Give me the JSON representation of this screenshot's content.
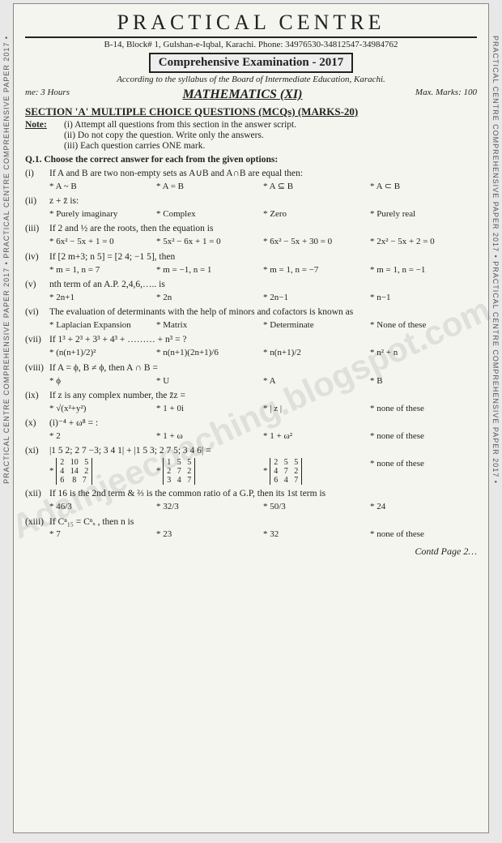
{
  "side_text": "PRACTICAL CENTRE COMPREHENSIVE PAPER 2017 • PRACTICAL CENTRE COMPREHENSIVE PAPER 2017 •",
  "header": {
    "title": "PRACTICAL CENTRE",
    "address": "B-14, Block# 1, Gulshan-e-Iqbal, Karachi. Phone: 34976530-34812547-34984762",
    "exam": "Comprehensive Examination - 2017",
    "syllabus": "According to the syllabus of the Board of Intermediate Education, Karachi.",
    "time": "me: 3 Hours",
    "subject": "MATHEMATICS (XI)",
    "marks": "Max. Marks: 100"
  },
  "section": "SECTION 'A' MULTIPLE CHOICE QUESTIONS (MCQs) (MARKS-20)",
  "note_label": "Note:",
  "notes": [
    "(i) Attempt all questions from this section in the answer script.",
    "(ii) Do not copy the question. Write only the answers.",
    "(iii) Each question carries ONE mark."
  ],
  "q_header": "Q.1. Choose the correct answer for each from the given options:",
  "questions": [
    {
      "n": "(i)",
      "t": "If A and B are two non-empty sets as A∪B and A∩B are equal then:",
      "o": [
        "* A ~ B",
        "* A = B",
        "* A ⊆ B",
        "* A ⊂ B"
      ]
    },
    {
      "n": "(ii)",
      "t": "z + z̄ is:",
      "o": [
        "* Purely imaginary",
        "* Complex",
        "* Zero",
        "* Purely real"
      ]
    },
    {
      "n": "(iii)",
      "t": "If 2 and ½ are the roots, then the equation is",
      "o": [
        "* 6x² − 5x + 1 = 0",
        "* 5x² − 6x + 1 = 0",
        "* 6x² − 5x + 30 = 0",
        "* 2x² − 5x + 2 = 0"
      ]
    },
    {
      "n": "(iv)",
      "t": "If [2 m+3; n 5] = [2 4; −1 5], then",
      "o": [
        "* m = 1, n = 7",
        "* m = −1, n = 1",
        "* m = 1, n = −7",
        "* m = 1, n = −1"
      ]
    },
    {
      "n": "(v)",
      "t": "nth term of an A.P. 2,4,6,….. is",
      "o": [
        "* 2n+1",
        "* 2n",
        "* 2n−1",
        "* n−1"
      ]
    },
    {
      "n": "(vi)",
      "t": "The evaluation of determinants with the help of minors and cofactors is known as",
      "o": [
        "* Laplacian Expansion",
        "* Matrix",
        "* Determinate",
        "* None of these"
      ]
    },
    {
      "n": "(vii)",
      "t": "If 1³ + 2³ + 3³ + 4³ + ……… + n³ = ?",
      "o": [
        "* (n(n+1)/2)²",
        "* n(n+1)(2n+1)/6",
        "* n(n+1)/2",
        "* n² + n"
      ]
    },
    {
      "n": "(viii)",
      "t": "If A = ϕ, B ≠ ϕ, then A ∩ B =",
      "o": [
        "* ϕ",
        "* U",
        "* A",
        "* B"
      ]
    },
    {
      "n": "(ix)",
      "t": "If z is any complex number, the z̄z =",
      "o": [
        "* √(x²+y²)",
        "* 1 + 0i",
        "* | z |",
        "* none of these"
      ]
    },
    {
      "n": "(x)",
      "t": "(i)⁻⁴ + ω⁸ = :",
      "o": [
        "* 2",
        "* 1 + ω",
        "* 1 + ω²",
        "* none of these"
      ]
    },
    {
      "n": "(xi)",
      "t": "|1 5 2; 2 7 −3; 3 4 1| + |1 5 3; 2 7 5; 3 4 6| =",
      "o": [
        "M1",
        "M2",
        "M3",
        "* none of these"
      ]
    },
    {
      "n": "(xii)",
      "t": "If 16 is the 2nd term & ⅔ is the common ratio of a G.P, then its 1st term is",
      "o": [
        "* 46/3",
        "* 32/3",
        "* 50/3",
        "* 24"
      ]
    },
    {
      "n": "(xiii)",
      "t": "If Cⁿ₁₅ = Cⁿₓ , then n is",
      "o": [
        "* 7",
        "* 23",
        "* 32",
        "* none of these"
      ]
    }
  ],
  "contd": "Contd Page 2…",
  "watermark": "Adamjeecoaching.blogspot.com"
}
